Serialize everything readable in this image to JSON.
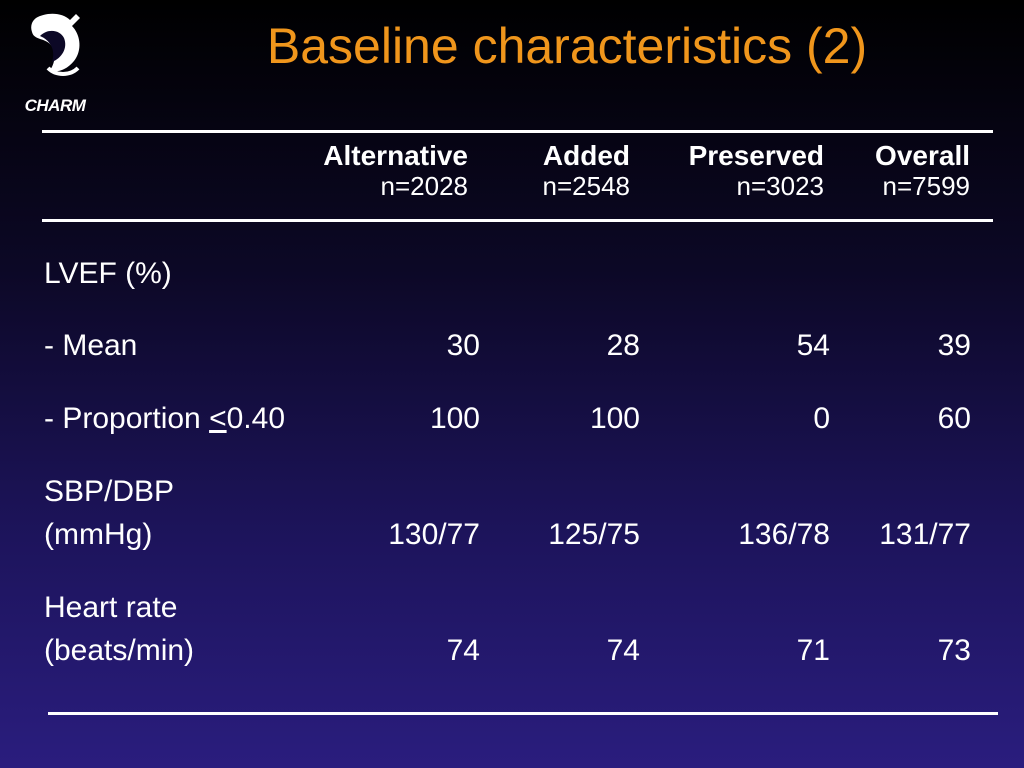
{
  "logo": {
    "text": "CHARM"
  },
  "title": "Baseline characteristics (2)",
  "columns": [
    {
      "name": "Alternative",
      "n": "n=2028"
    },
    {
      "name": "Added",
      "n": "n=2548"
    },
    {
      "name": "Preserved",
      "n": "n=3023"
    },
    {
      "name": "Overall",
      "n": "n=7599"
    }
  ],
  "rows": {
    "lvef": {
      "label": "LVEF (%)"
    },
    "mean": {
      "label": "- Mean",
      "values": [
        "30",
        "28",
        "54",
        "39"
      ]
    },
    "proportion": {
      "label_prefix": "- Proportion ",
      "label_symbol": "<",
      "label_suffix": "0.40",
      "values": [
        "100",
        "100",
        "0",
        "60"
      ]
    },
    "bp": {
      "label_line1": "SBP/DBP",
      "label_line2": "(mmHg)",
      "values": [
        "130/77",
        "125/75",
        "136/78",
        "131/77"
      ]
    },
    "hr": {
      "label_line1": "Heart rate",
      "label_line2": "(beats/min)",
      "values": [
        "74",
        "74",
        "71",
        "73"
      ]
    }
  },
  "colors": {
    "title": "#f0961c",
    "text": "#ffffff",
    "background_top": "#000000",
    "background_bottom": "#2a1d7e"
  }
}
